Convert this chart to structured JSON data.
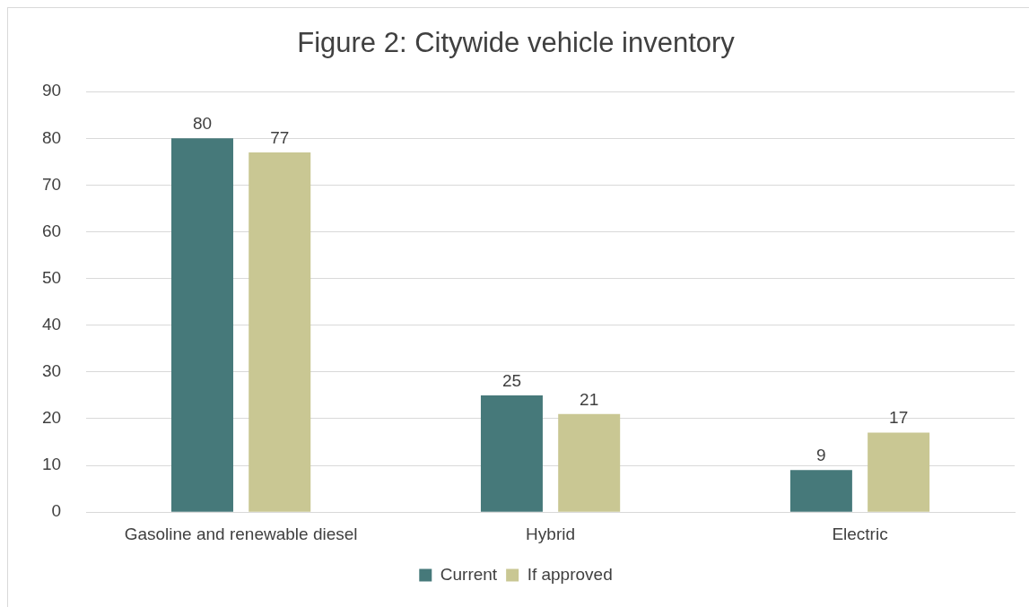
{
  "chart_data": {
    "type": "bar",
    "title": "Figure 2: Citywide vehicle inventory",
    "categories": [
      "Gasoline and renewable diesel",
      "Hybrid",
      "Electric"
    ],
    "series": [
      {
        "name": "Current",
        "color": "#46797a",
        "values": [
          80,
          25,
          9
        ]
      },
      {
        "name": "If approved",
        "color": "#c9c793",
        "values": [
          77,
          21,
          17
        ]
      }
    ],
    "ylim": [
      0,
      90
    ],
    "yticks": [
      0,
      10,
      20,
      30,
      40,
      50,
      60,
      70,
      80,
      90
    ],
    "grid": "y",
    "legend": "bottom",
    "data_labels": true
  }
}
